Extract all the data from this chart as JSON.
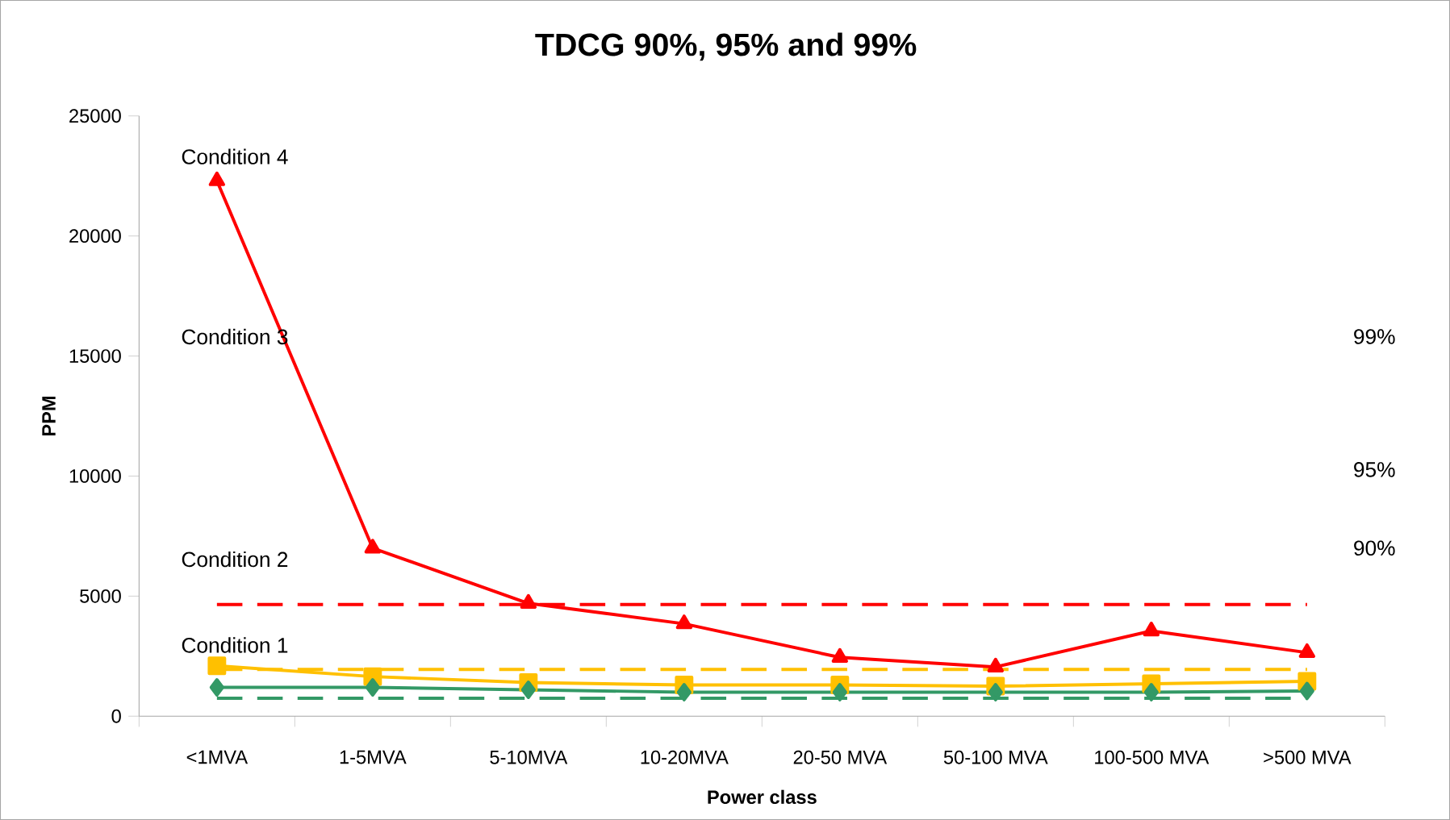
{
  "chart_data": {
    "type": "line",
    "title": "TDCG 90%, 95% and 99%",
    "xlabel": "Power class",
    "ylabel": "PPM",
    "categories": [
      "<1MVA",
      "1-5MVA",
      "5-10MVA",
      "10-20MVA",
      "20-50 MVA",
      "50-100 MVA",
      "100-500 MVA",
      ">500 MVA"
    ],
    "series": [
      {
        "color": "#ff0000",
        "marker": "triangle",
        "values": [
          22300,
          7000,
          4700,
          3850,
          2450,
          2050,
          3550,
          2650
        ]
      },
      {
        "color": "#ffc000",
        "marker": "square",
        "values": [
          2100,
          1650,
          1400,
          1300,
          1300,
          1250,
          1350,
          1450
        ]
      },
      {
        "color": "#339966",
        "marker": "diamond",
        "values": [
          1200,
          1200,
          1100,
          1000,
          1000,
          1000,
          1000,
          1050
        ]
      }
    ],
    "ylim": [
      0,
      25000
    ],
    "yticks": [
      0,
      5000,
      10000,
      15000,
      20000,
      25000
    ],
    "grid": false,
    "line_style": "solid",
    "ref_lines": [
      {
        "axis": "y",
        "value": 4650,
        "color": "#ff0000",
        "line_style": "dashed"
      },
      {
        "axis": "y",
        "value": 1950,
        "color": "#ffc000",
        "line_style": "dashed"
      },
      {
        "axis": "y",
        "value": 750,
        "color": "#339966",
        "line_style": "dashed"
      }
    ],
    "annotations": [
      "Condition 4",
      "Condition 3",
      "Condition 2",
      "Condition 1",
      "99%",
      "95%",
      "90%"
    ]
  }
}
